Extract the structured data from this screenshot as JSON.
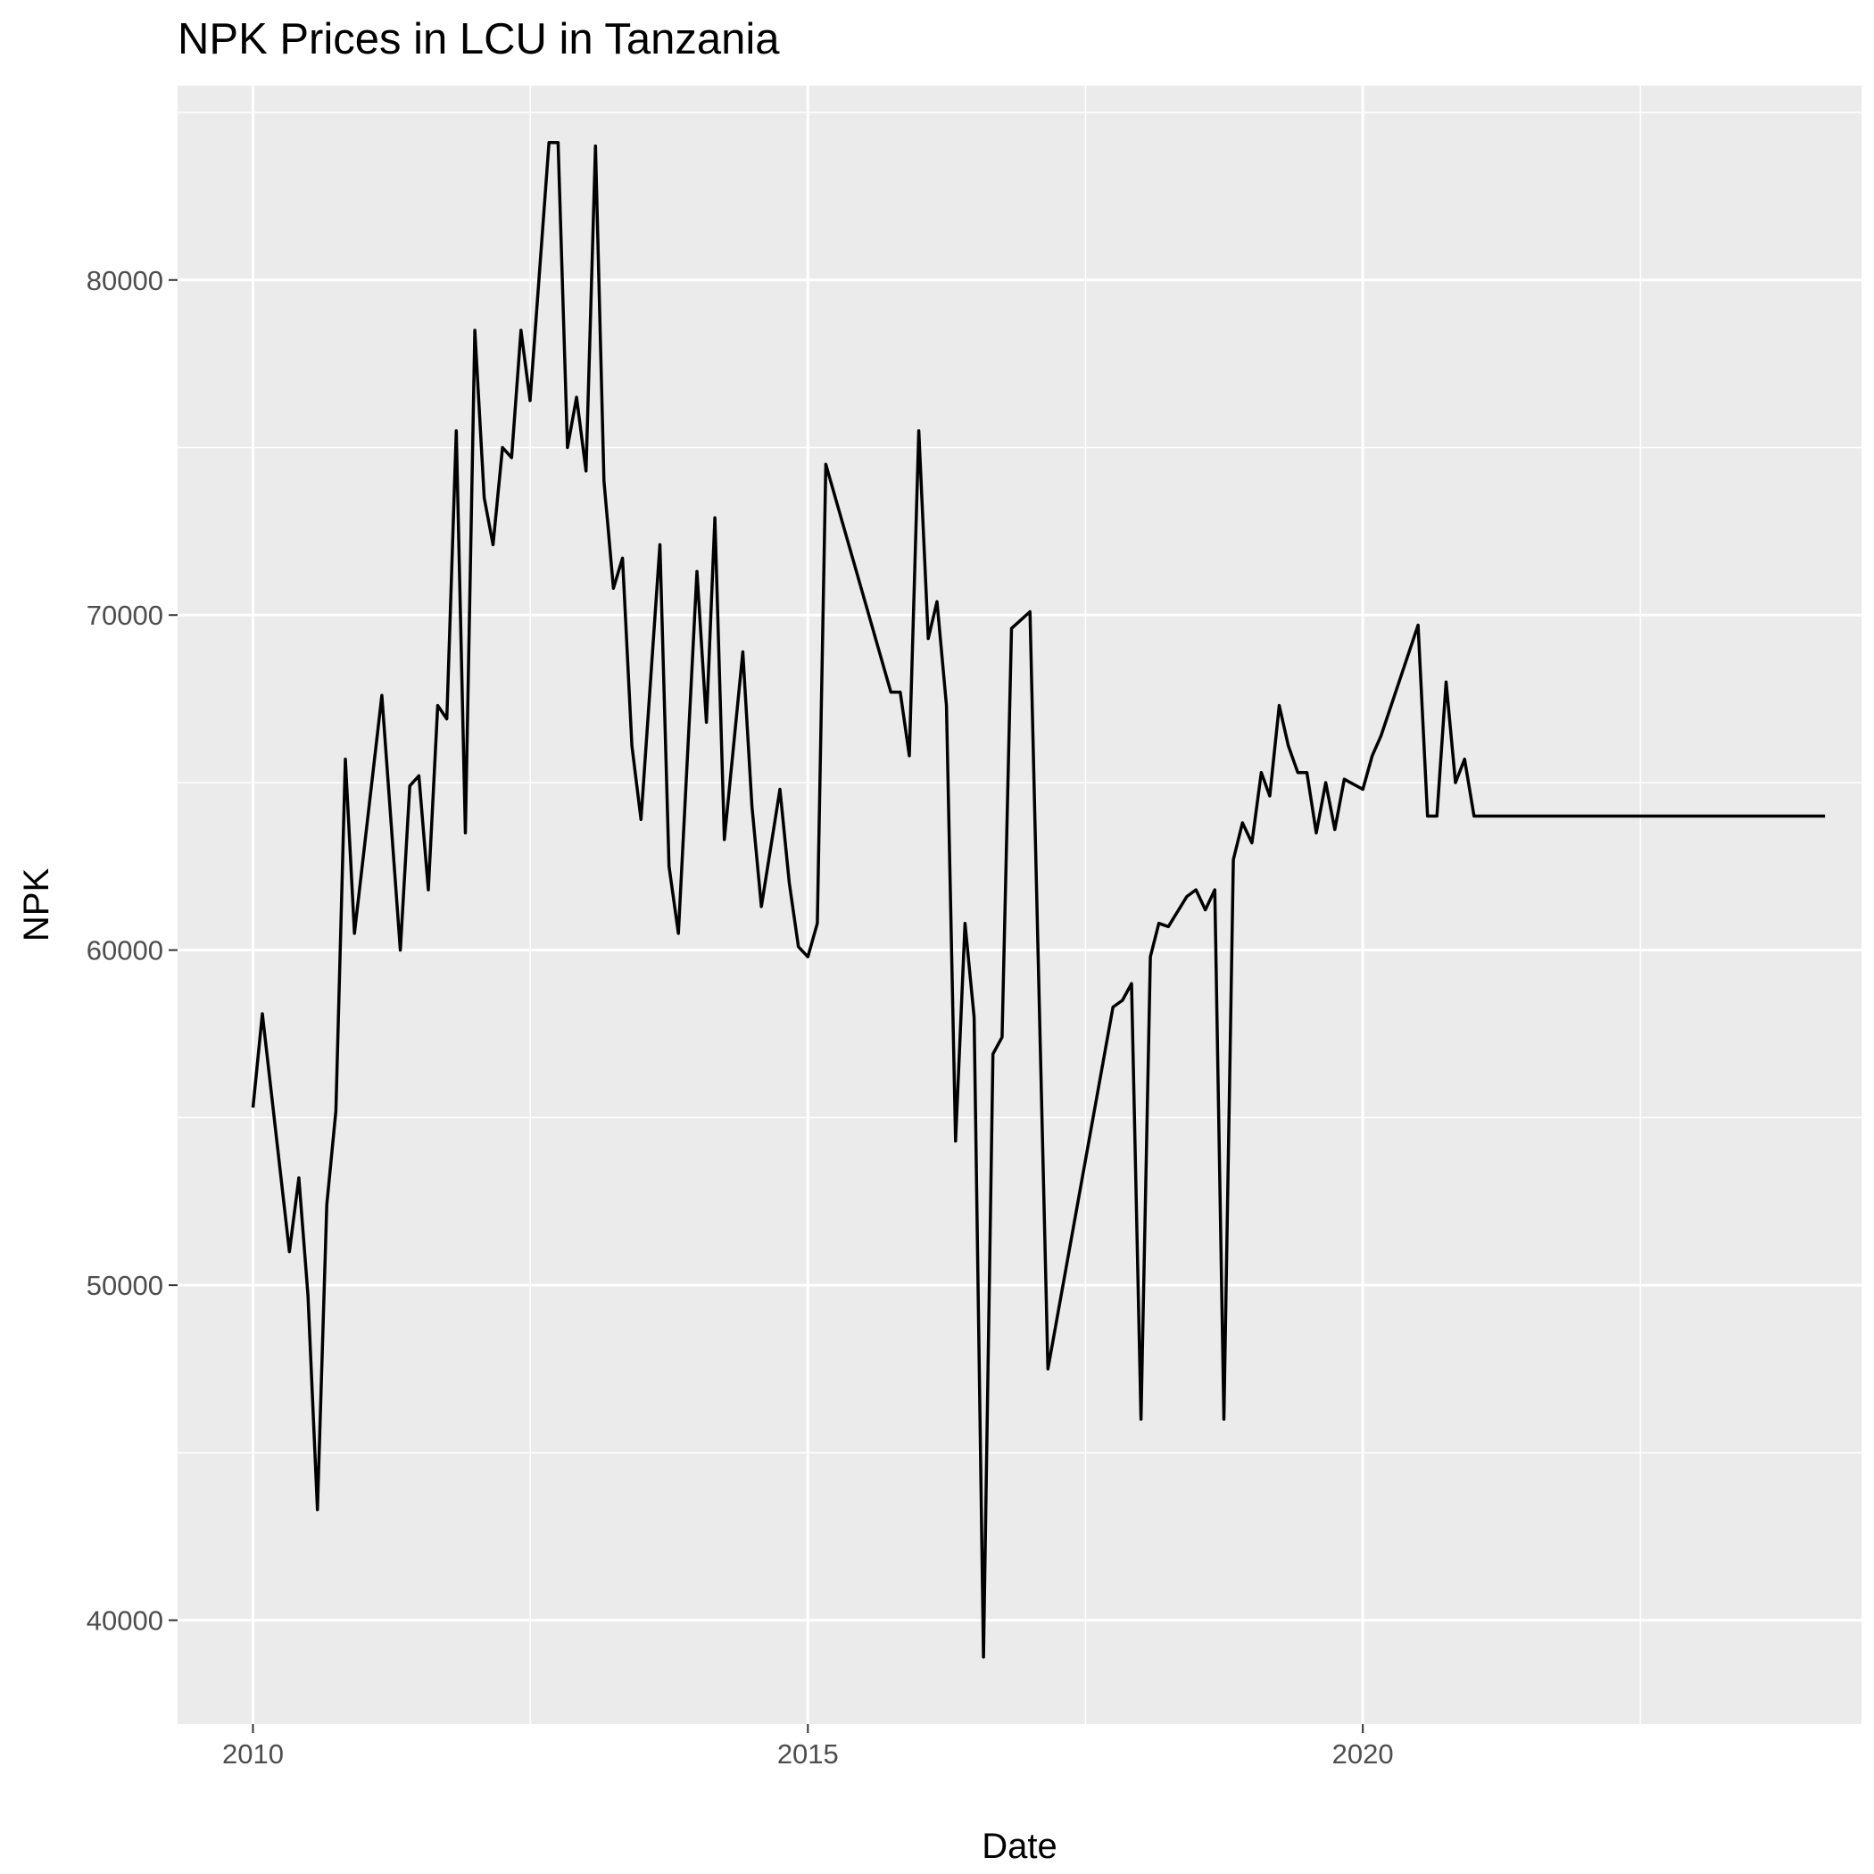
{
  "chart_data": {
    "type": "line",
    "title": "NPK Prices in LCU in Tanzania",
    "xlabel": "Date",
    "ylabel": "NPK",
    "xlim": [
      "2009-04-28",
      "2024-06-29"
    ],
    "ylim": [
      36900,
      85800
    ],
    "x_ticks": [
      "2010",
      "2015",
      "2020"
    ],
    "y_ticks": [
      "40000",
      "50000",
      "60000",
      "70000",
      "80000"
    ],
    "grid": true,
    "legend": "none",
    "colors": {
      "panel": "#ebebeb",
      "grid": "#ffffff",
      "line": "#000000",
      "tick_text": "#4d4d4d"
    },
    "series": [
      {
        "points": [
          [
            "2010-01-01",
            55300
          ],
          [
            "2010-02-01",
            58100
          ],
          [
            "2010-05-01",
            51000
          ],
          [
            "2010-06-01",
            53200
          ],
          [
            "2010-07-01",
            49700
          ],
          [
            "2010-08-01",
            43300
          ],
          [
            "2010-09-01",
            52400
          ],
          [
            "2010-10-01",
            55200
          ],
          [
            "2010-11-01",
            65700
          ],
          [
            "2010-12-01",
            60500
          ],
          [
            "2011-03-01",
            67600
          ],
          [
            "2011-05-01",
            60000
          ],
          [
            "2011-06-01",
            64900
          ],
          [
            "2011-07-01",
            65200
          ],
          [
            "2011-08-01",
            61800
          ],
          [
            "2011-09-01",
            67300
          ],
          [
            "2011-10-01",
            66900
          ],
          [
            "2011-11-01",
            75500
          ],
          [
            "2011-12-01",
            63500
          ],
          [
            "2012-01-01",
            78500
          ],
          [
            "2012-02-01",
            73500
          ],
          [
            "2012-03-01",
            72100
          ],
          [
            "2012-04-01",
            75000
          ],
          [
            "2012-05-01",
            74700
          ],
          [
            "2012-06-01",
            78500
          ],
          [
            "2012-07-01",
            76400
          ],
          [
            "2012-09-01",
            84100
          ],
          [
            "2012-10-01",
            84100
          ],
          [
            "2012-11-01",
            75000
          ],
          [
            "2012-12-01",
            76500
          ],
          [
            "2013-01-01",
            74300
          ],
          [
            "2013-02-01",
            84000
          ],
          [
            "2013-03-01",
            74000
          ],
          [
            "2013-04-01",
            70800
          ],
          [
            "2013-05-01",
            71700
          ],
          [
            "2013-06-01",
            66100
          ],
          [
            "2013-07-01",
            63900
          ],
          [
            "2013-09-01",
            72100
          ],
          [
            "2013-10-01",
            62500
          ],
          [
            "2013-11-01",
            60500
          ],
          [
            "2014-01-01",
            71300
          ],
          [
            "2014-02-01",
            66800
          ],
          [
            "2014-03-01",
            72900
          ],
          [
            "2014-04-01",
            63300
          ],
          [
            "2014-06-01",
            68900
          ],
          [
            "2014-07-01",
            64300
          ],
          [
            "2014-08-01",
            61300
          ],
          [
            "2014-10-01",
            64800
          ],
          [
            "2014-11-01",
            62000
          ],
          [
            "2014-12-01",
            60100
          ],
          [
            "2015-01-01",
            59800
          ],
          [
            "2015-02-01",
            60800
          ],
          [
            "2015-03-01",
            74500
          ],
          [
            "2015-10-01",
            67700
          ],
          [
            "2015-11-01",
            67700
          ],
          [
            "2015-12-01",
            65800
          ],
          [
            "2016-01-01",
            75500
          ],
          [
            "2016-02-01",
            69300
          ],
          [
            "2016-03-01",
            70400
          ],
          [
            "2016-04-01",
            67300
          ],
          [
            "2016-05-01",
            54300
          ],
          [
            "2016-06-01",
            60800
          ],
          [
            "2016-07-01",
            58000
          ],
          [
            "2016-08-01",
            38900
          ],
          [
            "2016-09-01",
            56900
          ],
          [
            "2016-10-01",
            57400
          ],
          [
            "2016-11-01",
            69600
          ],
          [
            "2017-01-01",
            70100
          ],
          [
            "2017-03-01",
            47500
          ],
          [
            "2017-10-01",
            58300
          ],
          [
            "2017-11-01",
            58500
          ],
          [
            "2017-12-01",
            59000
          ],
          [
            "2018-01-01",
            46000
          ],
          [
            "2018-02-01",
            59800
          ],
          [
            "2018-03-01",
            60800
          ],
          [
            "2018-04-01",
            60700
          ],
          [
            "2018-06-01",
            61600
          ],
          [
            "2018-07-01",
            61800
          ],
          [
            "2018-08-01",
            61200
          ],
          [
            "2018-09-01",
            61800
          ],
          [
            "2018-10-01",
            46000
          ],
          [
            "2018-11-01",
            62700
          ],
          [
            "2018-12-01",
            63800
          ],
          [
            "2019-01-01",
            63200
          ],
          [
            "2019-02-01",
            65300
          ],
          [
            "2019-03-01",
            64600
          ],
          [
            "2019-04-01",
            67300
          ],
          [
            "2019-05-01",
            66100
          ],
          [
            "2019-06-01",
            65300
          ],
          [
            "2019-07-01",
            65300
          ],
          [
            "2019-08-01",
            63500
          ],
          [
            "2019-09-01",
            65000
          ],
          [
            "2019-10-01",
            63600
          ],
          [
            "2019-11-01",
            65100
          ],
          [
            "2020-01-01",
            64800
          ],
          [
            "2020-02-01",
            65800
          ],
          [
            "2020-03-01",
            66400
          ],
          [
            "2020-07-01",
            69700
          ],
          [
            "2020-08-01",
            64000
          ],
          [
            "2020-09-01",
            64000
          ],
          [
            "2020-10-01",
            68000
          ],
          [
            "2020-11-01",
            65000
          ],
          [
            "2020-12-01",
            65700
          ],
          [
            "2021-01-01",
            64000
          ],
          [
            "2024-03-01",
            64000
          ]
        ]
      }
    ]
  }
}
